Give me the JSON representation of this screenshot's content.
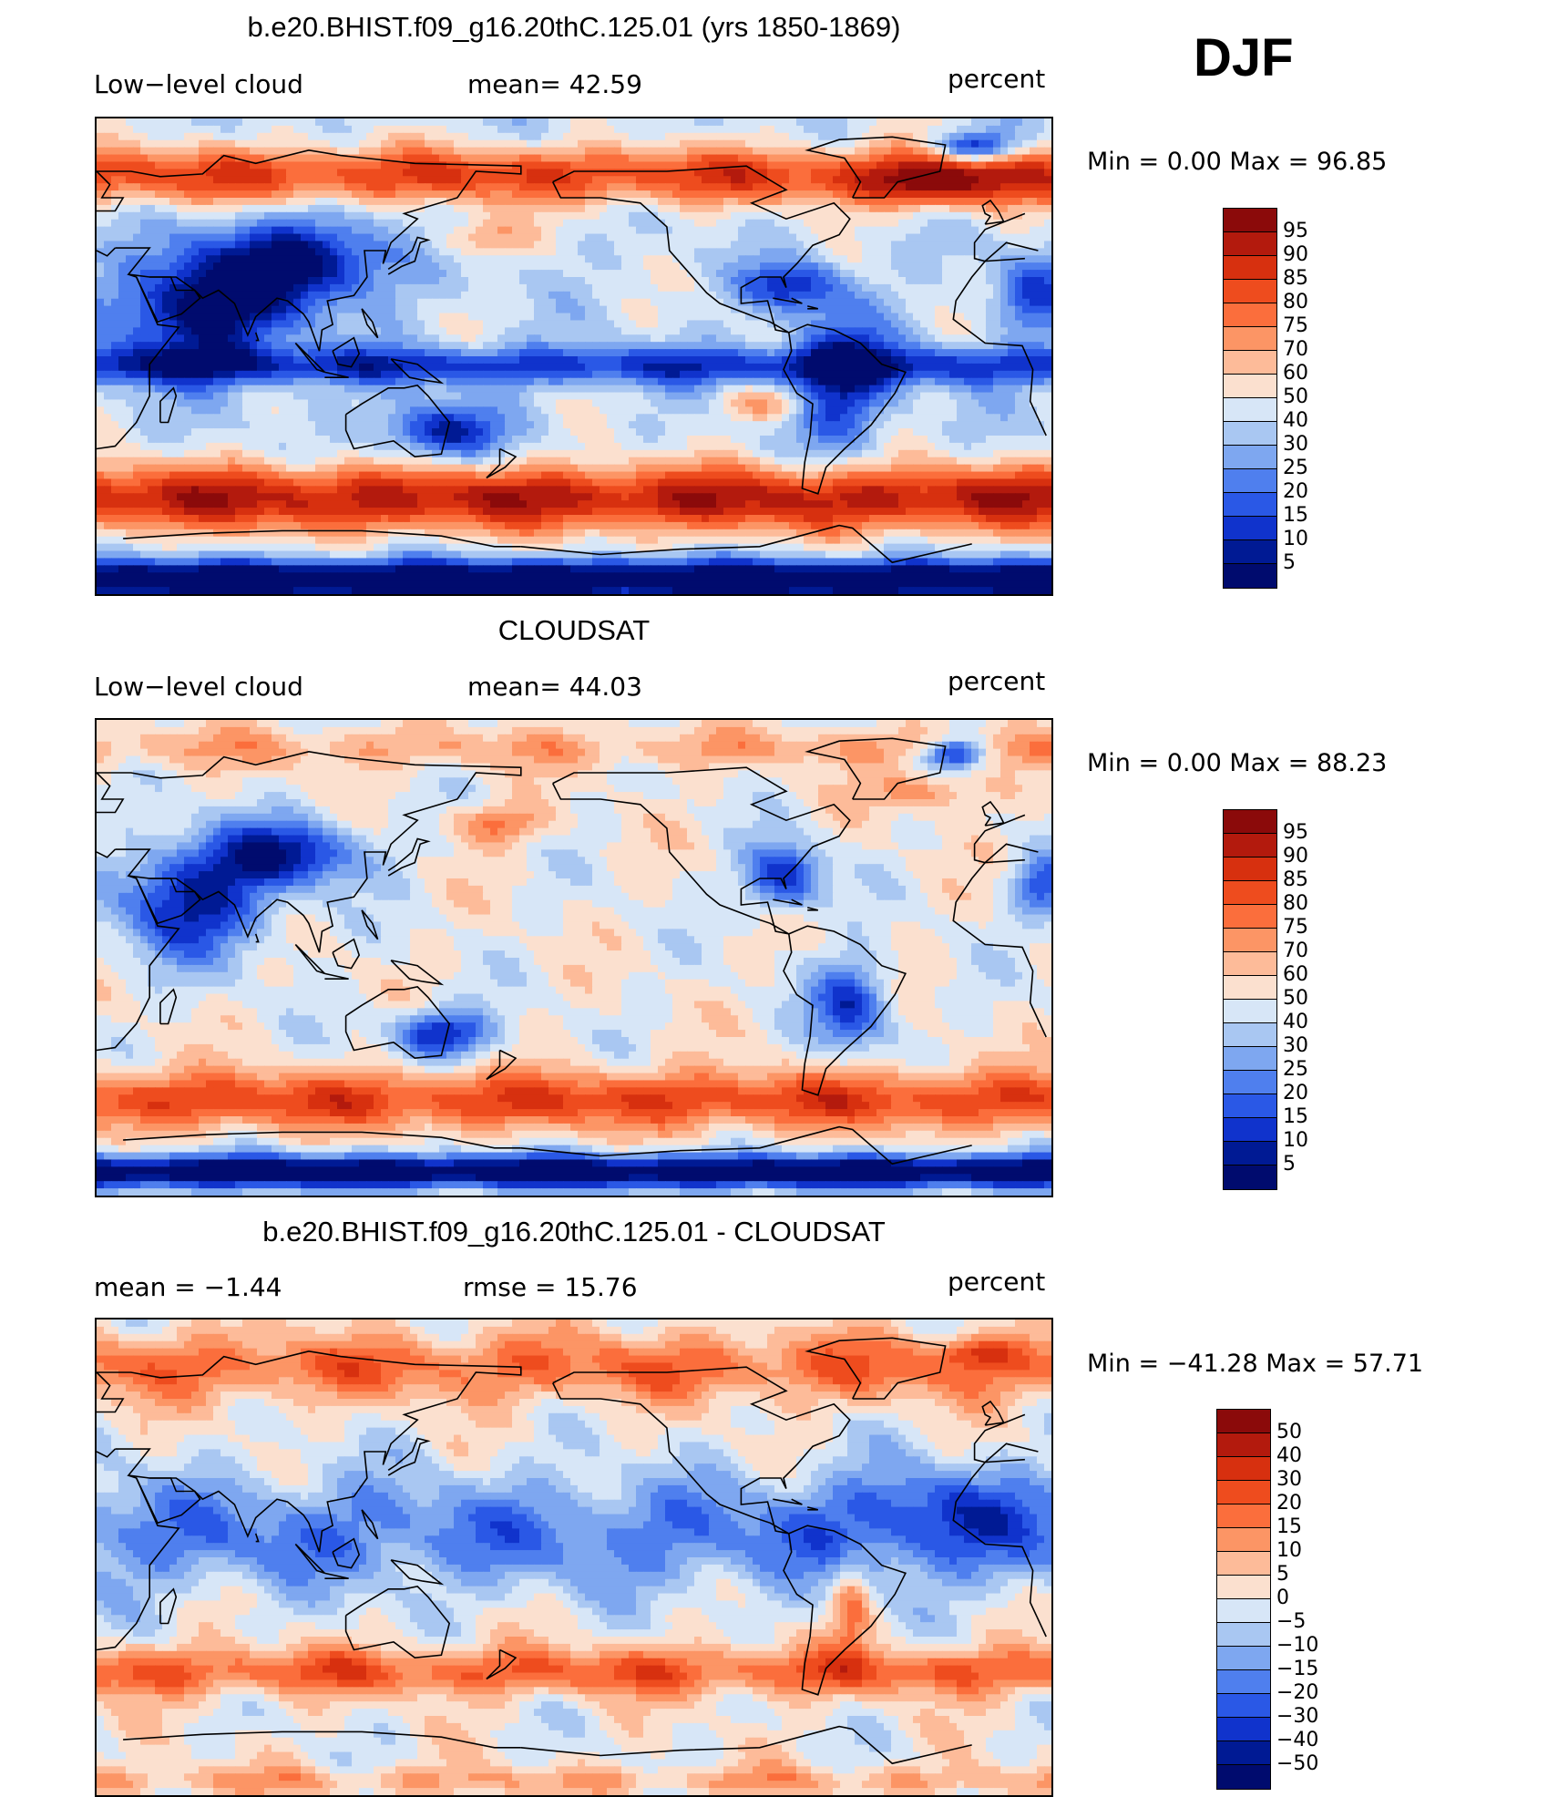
{
  "season": "DJF",
  "panels": [
    {
      "id": "model",
      "title": "b.e20.BHIST.f09_g16.20thC.125.01 (yrs 1850-1869)",
      "left_label": "Low−level cloud",
      "center_label": "mean=   42.59",
      "right_label": "percent",
      "minmax": "Min =    0.00 Max =   96.85",
      "colorbar": {
        "labels": [
          "95",
          "90",
          "85",
          "80",
          "75",
          "70",
          "60",
          "50",
          "40",
          "30",
          "25",
          "20",
          "15",
          "10",
          "5"
        ],
        "colors": [
          "#8b0a0a",
          "#b31a0d",
          "#d7300f",
          "#ee4c1e",
          "#fb6e3c",
          "#fc9565",
          "#fdbb99",
          "#fbe0cf",
          "#d7e6f7",
          "#a9c7f2",
          "#7ea7f0",
          "#4f7fee",
          "#2a58e6",
          "#1033cc",
          "#001a94",
          "#000b6e"
        ]
      },
      "field": "model"
    },
    {
      "id": "obs",
      "title": "CLOUDSAT",
      "left_label": "Low−level cloud",
      "center_label": "mean=   44.03",
      "right_label": "percent",
      "minmax": "Min =    0.00 Max =   88.23",
      "colorbar": {
        "labels": [
          "95",
          "90",
          "85",
          "80",
          "75",
          "70",
          "60",
          "50",
          "40",
          "30",
          "25",
          "20",
          "15",
          "10",
          "5"
        ],
        "colors": [
          "#8b0a0a",
          "#b31a0d",
          "#d7300f",
          "#ee4c1e",
          "#fb6e3c",
          "#fc9565",
          "#fdbb99",
          "#fbe0cf",
          "#d7e6f7",
          "#a9c7f2",
          "#7ea7f0",
          "#4f7fee",
          "#2a58e6",
          "#1033cc",
          "#001a94",
          "#000b6e"
        ]
      },
      "field": "obs"
    },
    {
      "id": "diff",
      "title": "b.e20.BHIST.f09_g16.20thC.125.01 - CLOUDSAT",
      "left_label": "mean =   −1.44",
      "center_label": "rmse =   15.76",
      "right_label": "percent",
      "minmax": "Min = −41.28 Max =   57.71",
      "colorbar": {
        "labels": [
          "50",
          "40",
          "30",
          "20",
          "15",
          "10",
          "5",
          "0",
          "−5",
          "−10",
          "−15",
          "−20",
          "−30",
          "−40",
          "−50"
        ],
        "colors": [
          "#8b0a0a",
          "#b31a0d",
          "#d7300f",
          "#ee4c1e",
          "#fb6e3c",
          "#fc9565",
          "#fdbb99",
          "#fbe0cf",
          "#d7e6f7",
          "#a9c7f2",
          "#7ea7f0",
          "#4f7fee",
          "#2a58e6",
          "#1033cc",
          "#001a94",
          "#000b6e"
        ]
      },
      "field": "diff"
    }
  ]
}
